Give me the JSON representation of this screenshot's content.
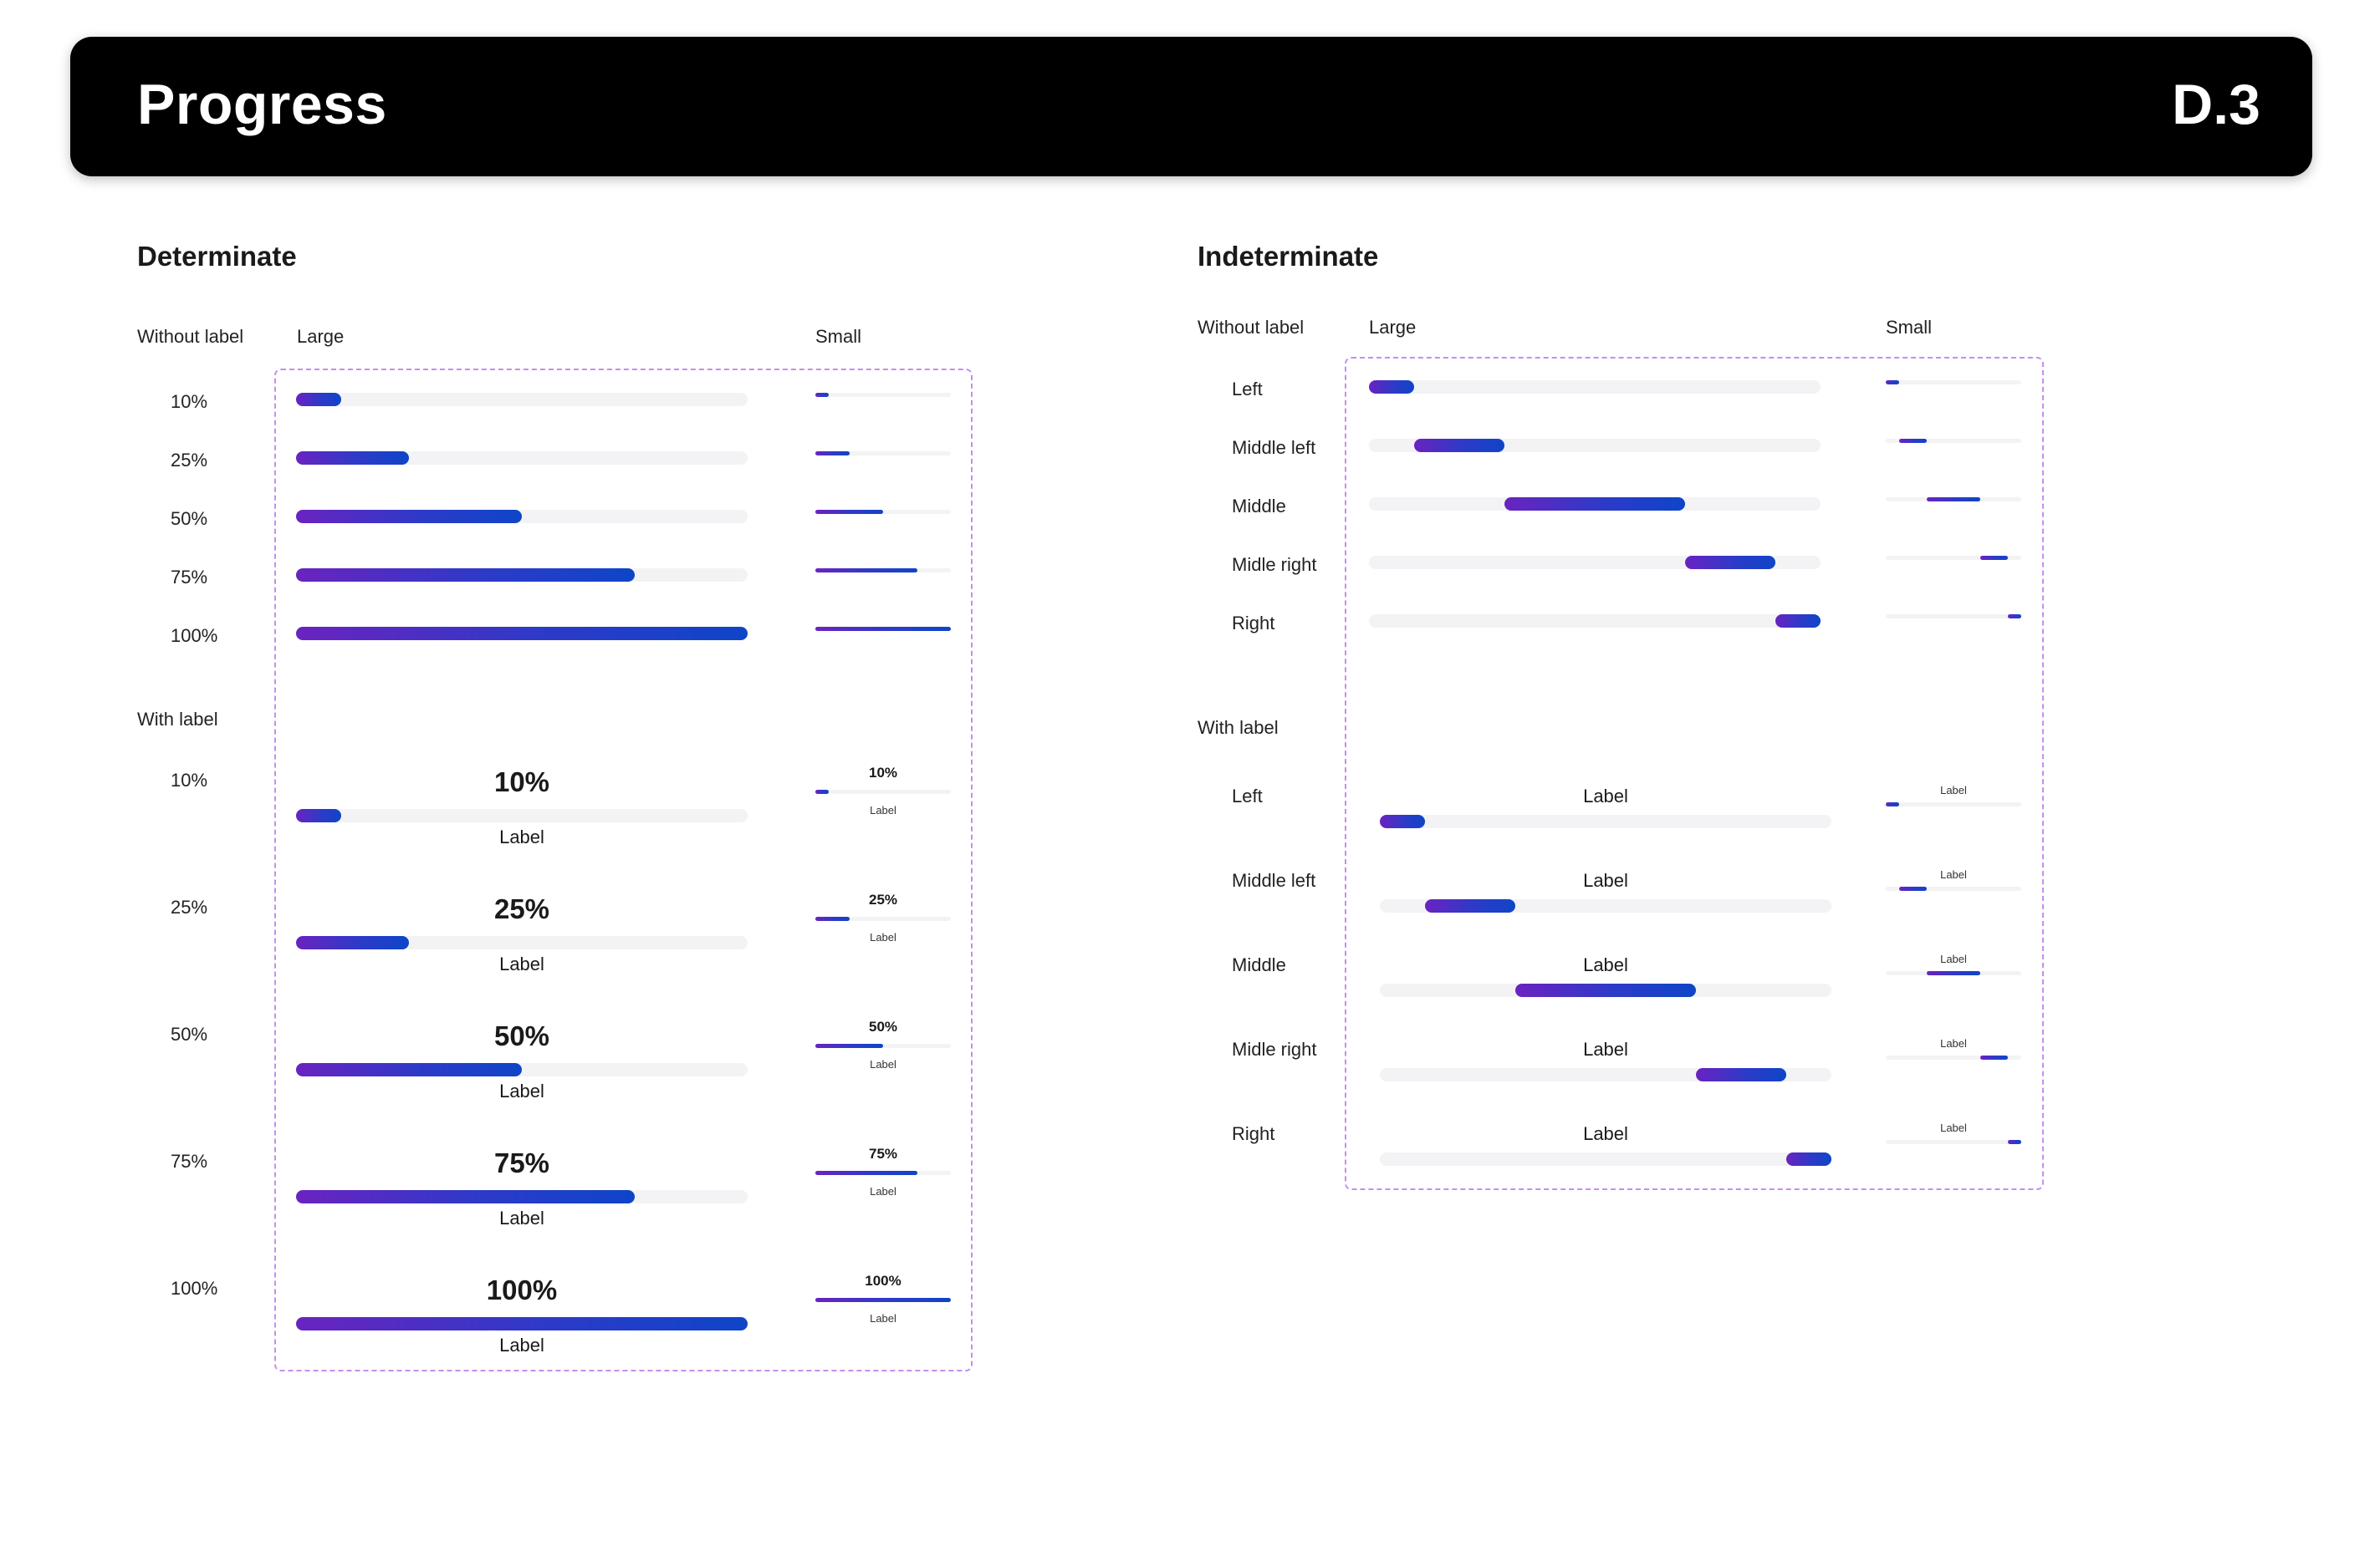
{
  "header": {
    "title": "Progress",
    "code": "D.3"
  },
  "determinate": {
    "title": "Determinate",
    "without_label_heading": "Without label",
    "large_heading": "Large",
    "small_heading": "Small",
    "with_label_heading": "With label",
    "without_rows": [
      {
        "label": "10%",
        "progress": 0.1
      },
      {
        "label": "25%",
        "progress": 0.25
      },
      {
        "label": "50%",
        "progress": 0.5
      },
      {
        "label": "75%",
        "progress": 0.75
      },
      {
        "label": "100%",
        "progress": 1.0
      }
    ],
    "with_rows": [
      {
        "label": "10%",
        "value_text": "10%",
        "caption": "Label",
        "small_value_text": "10%",
        "small_caption": "Label",
        "progress": 0.1
      },
      {
        "label": "25%",
        "value_text": "25%",
        "caption": "Label",
        "small_value_text": "25%",
        "small_caption": "Label",
        "progress": 0.25
      },
      {
        "label": "50%",
        "value_text": "50%",
        "caption": "Label",
        "small_value_text": "50%",
        "small_caption": "Label",
        "progress": 0.5
      },
      {
        "label": "75%",
        "value_text": "75%",
        "caption": "Label",
        "small_value_text": "75%",
        "small_caption": "Label",
        "progress": 0.75
      },
      {
        "label": "100%",
        "value_text": "100%",
        "caption": "Label",
        "small_value_text": "100%",
        "small_caption": "Label",
        "progress": 1.0
      }
    ]
  },
  "indeterminate": {
    "title": "Indeterminate",
    "without_label_heading": "Without label",
    "large_heading": "Large",
    "small_heading": "Small",
    "with_label_heading": "With label",
    "without_rows": [
      {
        "label": "Left",
        "segment_start": 0.0,
        "segment_end": 0.1
      },
      {
        "label": "Middle left",
        "segment_start": 0.1,
        "segment_end": 0.3
      },
      {
        "label": "Middle",
        "segment_start": 0.3,
        "segment_end": 0.7
      },
      {
        "label": "Midle right",
        "segment_start": 0.7,
        "segment_end": 0.9
      },
      {
        "label": "Right",
        "segment_start": 0.9,
        "segment_end": 1.0
      }
    ],
    "with_rows": [
      {
        "label": "Left",
        "caption": "Label",
        "small_caption": "Label",
        "segment_start": 0.0,
        "segment_end": 0.1
      },
      {
        "label": "Middle left",
        "caption": "Label",
        "small_caption": "Label",
        "segment_start": 0.1,
        "segment_end": 0.3
      },
      {
        "label": "Middle",
        "caption": "Label",
        "small_caption": "Label",
        "segment_start": 0.3,
        "segment_end": 0.7
      },
      {
        "label": "Midle right",
        "caption": "Label",
        "small_caption": "Label",
        "segment_start": 0.7,
        "segment_end": 0.9
      },
      {
        "label": "Right",
        "caption": "Label",
        "small_caption": "Label",
        "segment_start": 0.9,
        "segment_end": 1.0
      }
    ]
  },
  "colors": {
    "accent_start": "#6a23c0",
    "accent_end": "#0f45c8",
    "track": "#f3f3f5",
    "frame": "#c58df0"
  }
}
